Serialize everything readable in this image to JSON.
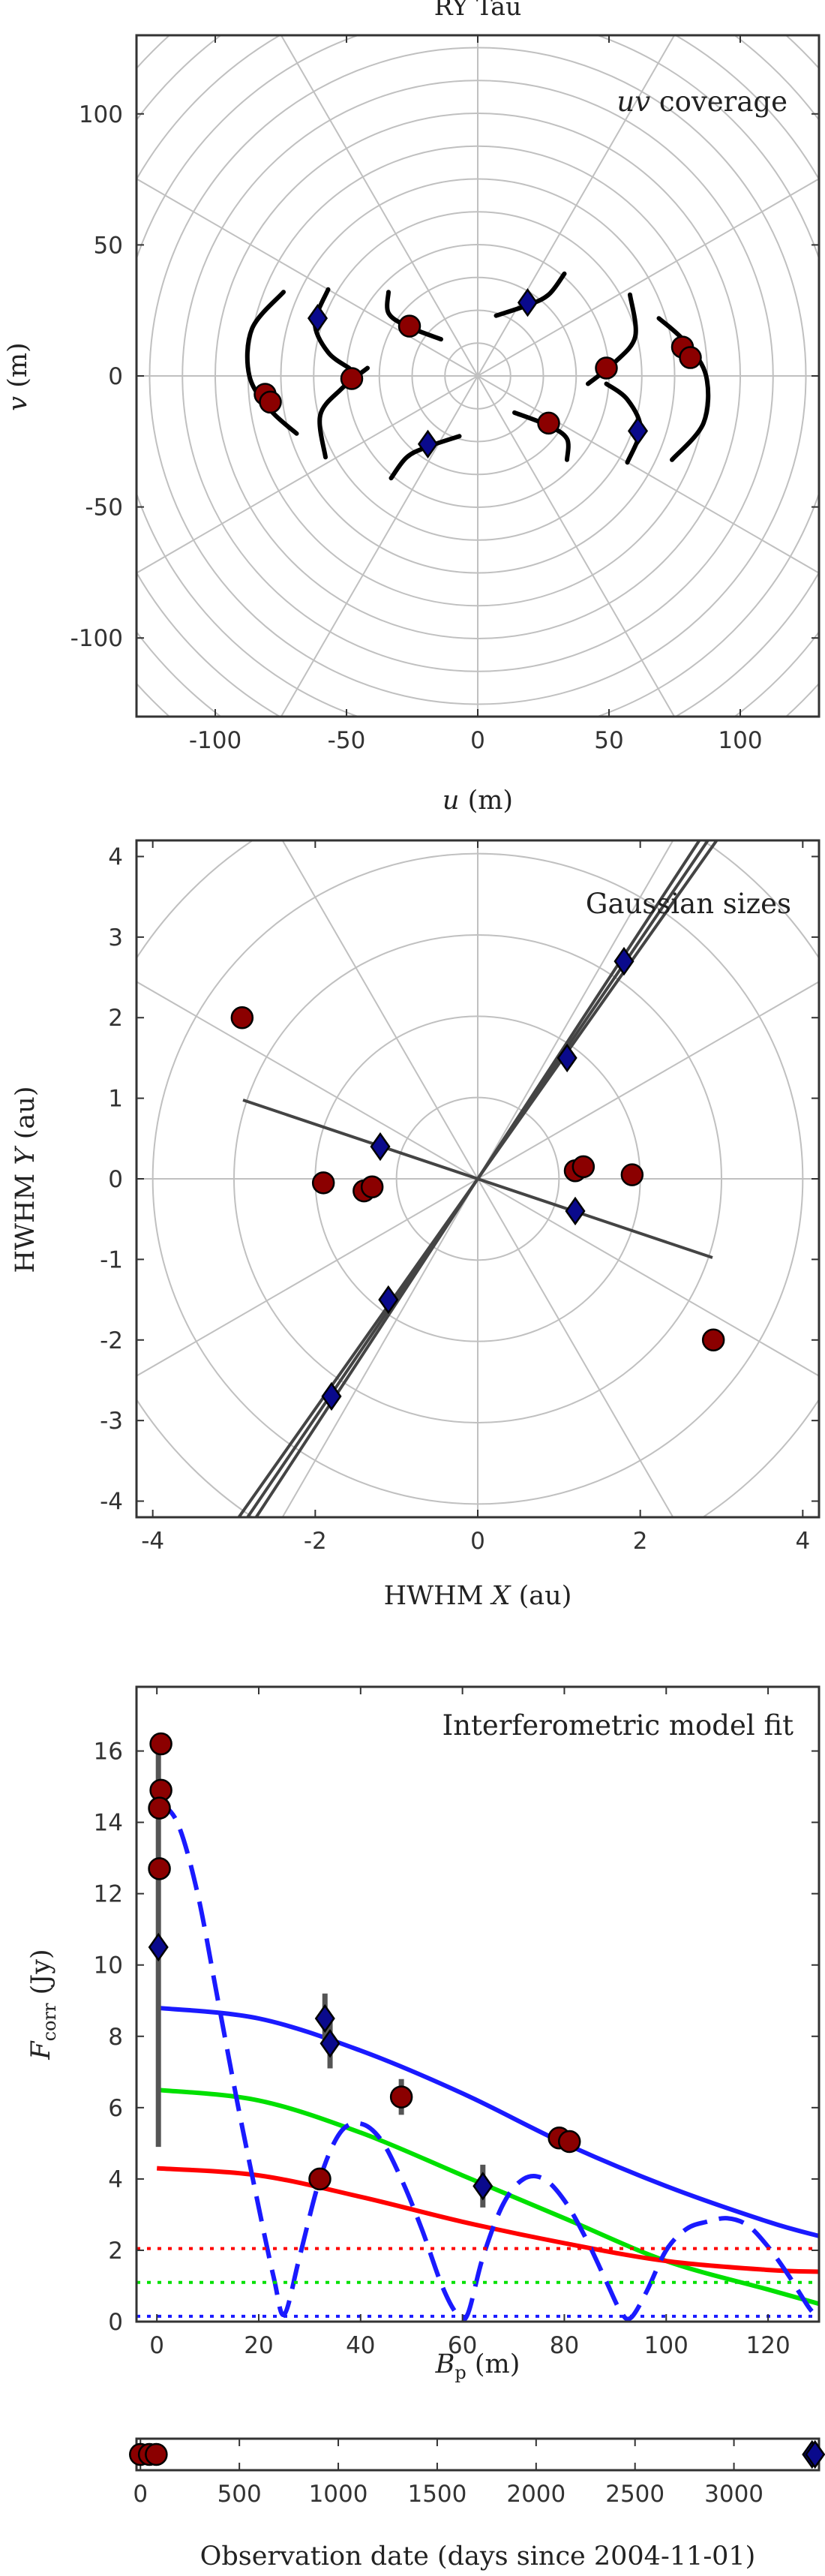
{
  "figure_title": "RY Tau",
  "panels": {
    "uv": {
      "title": "uv coverage",
      "title_italic": "uv",
      "title_rest": " coverage",
      "xlabel_var": "u",
      "xlabel_unit": " (m)",
      "ylabel_var": "v",
      "ylabel_unit": " (m)"
    },
    "sizes": {
      "title": "Gaussian sizes",
      "xlabel_pre": "HWHM ",
      "xlabel_var": "X",
      "xlabel_unit": " (au)",
      "ylabel_pre": "HWHM ",
      "ylabel_var": "Y",
      "ylabel_unit": " (au)"
    },
    "fit": {
      "title": "Interferometric model fit",
      "xlabel_var": "B",
      "xlabel_sub": "p",
      "xlabel_unit": " (m)",
      "ylabel_var": "F",
      "ylabel_sub": "corr",
      "ylabel_unit": " (Jy)"
    },
    "dates": {
      "xlabel": "Observation date (days since 2004-11-01)"
    }
  },
  "colors": {
    "red_marker": "#8b0000",
    "blue_marker": "#0a0a8c",
    "curve_blue": "#1a1aff",
    "curve_green": "#00e000",
    "curve_red": "#ff0000",
    "grid": "#c0c0c0",
    "track": "#000000",
    "errorbar": "#555555"
  },
  "chart_data": [
    {
      "id": "uv",
      "type": "scatter",
      "title": "uv coverage",
      "xlabel": "u (m)",
      "ylabel": "v (m)",
      "xlim": [
        -130,
        130
      ],
      "ylim": [
        -130,
        130
      ],
      "xticks": [
        -100,
        -50,
        0,
        50,
        100
      ],
      "yticks": [
        -100,
        -50,
        0,
        50,
        100
      ],
      "polar_grid": {
        "rings": [
          12.5,
          25,
          37.5,
          50,
          62.5,
          75,
          87.5,
          100,
          112.5,
          125,
          137.5,
          150,
          162.5,
          175
        ],
        "spoke_step_deg": 30
      },
      "series": [
        {
          "marker": "circle",
          "color": "red",
          "points": [
            [
              -81,
              -7
            ],
            [
              -79,
              -10
            ],
            [
              -48,
              -1
            ],
            [
              -26,
              19
            ],
            [
              27,
              -18
            ],
            [
              49,
              3
            ],
            [
              78,
              11
            ],
            [
              81,
              7
            ]
          ]
        },
        {
          "marker": "diamond",
          "color": "blue",
          "points": [
            [
              -61,
              22
            ],
            [
              -19,
              -26
            ],
            [
              19,
              28
            ],
            [
              61,
              -21
            ]
          ]
        }
      ],
      "tracks": [
        [
          [
            -74,
            32
          ],
          [
            -86,
            18
          ],
          [
            -87,
            0
          ],
          [
            -79,
            -13
          ],
          [
            -69,
            -22
          ]
        ],
        [
          [
            -57,
            33
          ],
          [
            -62,
            20
          ],
          [
            -57,
            9
          ],
          [
            -49,
            3
          ]
        ],
        [
          [
            -58,
            -31
          ],
          [
            -60,
            -15
          ],
          [
            -52,
            -5
          ],
          [
            -42,
            3
          ]
        ],
        [
          [
            -34,
            32
          ],
          [
            -34,
            24
          ],
          [
            -27,
            19
          ],
          [
            -14,
            14
          ]
        ],
        [
          [
            -33,
            -39
          ],
          [
            -27,
            -31
          ],
          [
            -19,
            -27
          ],
          [
            -7,
            -23
          ]
        ],
        [
          [
            33,
            39
          ],
          [
            27,
            31
          ],
          [
            19,
            27
          ],
          [
            7,
            23
          ]
        ],
        [
          [
            14,
            -14
          ],
          [
            27,
            -19
          ],
          [
            34,
            -24
          ],
          [
            34,
            -32
          ]
        ],
        [
          [
            42,
            -3
          ],
          [
            52,
            5
          ],
          [
            60,
            15
          ],
          [
            58,
            31
          ]
        ],
        [
          [
            49,
            -3
          ],
          [
            57,
            -9
          ],
          [
            62,
            -20
          ],
          [
            57,
            -33
          ]
        ],
        [
          [
            69,
            22
          ],
          [
            79,
            13
          ],
          [
            87,
            0
          ],
          [
            86,
            -18
          ],
          [
            74,
            -32
          ]
        ]
      ]
    },
    {
      "id": "sizes",
      "type": "scatter",
      "title": "Gaussian sizes",
      "xlabel": "HWHM X (au)",
      "ylabel": "HWHM Y (au)",
      "xlim": [
        -4.2,
        4.2
      ],
      "ylim": [
        -4.2,
        4.2
      ],
      "xticks": [
        -4,
        -2,
        0,
        2,
        4
      ],
      "yticks": [
        -4,
        -3,
        -2,
        -1,
        0,
        1,
        2,
        3,
        4
      ],
      "polar_grid": {
        "rings": [
          1,
          2,
          3,
          4,
          5,
          6
        ],
        "spoke_step_deg": 30
      },
      "series": [
        {
          "marker": "circle",
          "color": "red",
          "points": [
            [
              -2.9,
              2.0
            ],
            [
              -1.9,
              -0.05
            ],
            [
              -1.4,
              -0.15
            ],
            [
              -1.3,
              -0.1
            ],
            [
              1.2,
              0.1
            ],
            [
              1.3,
              0.15
            ],
            [
              1.9,
              0.05
            ],
            [
              2.9,
              -2.0
            ]
          ]
        },
        {
          "marker": "diamond",
          "color": "blue",
          "points": [
            [
              -1.8,
              -2.7
            ],
            [
              -1.1,
              -1.5
            ],
            [
              -1.2,
              0.4
            ],
            [
              1.2,
              -0.4
            ],
            [
              1.1,
              1.5
            ],
            [
              1.8,
              2.7
            ]
          ]
        }
      ],
      "lines": [
        {
          "angle_deg": 57,
          "half_length": 6.0
        },
        {
          "angle_deg": 56,
          "half_length": 6.0
        },
        {
          "angle_deg": 55,
          "half_length": 6.0
        },
        {
          "angle_deg": -18.7,
          "half_length": 3.05
        }
      ]
    },
    {
      "id": "fit",
      "type": "line",
      "title": "Interferometric model fit",
      "xlabel": "Bp (m)",
      "ylabel": "Fcorr (Jy)",
      "xlim": [
        -4,
        130
      ],
      "ylim": [
        0,
        17.8
      ],
      "xticks": [
        0,
        20,
        40,
        60,
        80,
        100,
        120
      ],
      "yticks": [
        0,
        2,
        4,
        6,
        8,
        10,
        12,
        14,
        16
      ],
      "series": [
        {
          "name": "",
          "style": "solid",
          "color": "blue",
          "x": [
            0,
            20,
            40,
            60,
            80,
            100,
            120,
            130
          ],
          "y": [
            8.8,
            8.5,
            7.6,
            6.4,
            5.0,
            3.8,
            2.8,
            2.4
          ]
        },
        {
          "name": "",
          "style": "solid",
          "color": "green",
          "x": [
            0,
            20,
            40,
            60,
            80,
            100,
            120,
            130
          ],
          "y": [
            6.5,
            6.2,
            5.3,
            4.1,
            2.9,
            1.7,
            0.9,
            0.5
          ]
        },
        {
          "name": "",
          "style": "solid",
          "color": "red",
          "x": [
            0,
            20,
            40,
            60,
            80,
            100,
            120,
            130
          ],
          "y": [
            4.3,
            4.1,
            3.5,
            2.8,
            2.2,
            1.7,
            1.45,
            1.4
          ]
        },
        {
          "name": "",
          "style": "dashed",
          "color": "blue",
          "x": [
            0,
            4,
            8,
            12,
            16,
            20,
            23,
            25,
            28,
            32,
            36,
            40,
            44,
            48,
            52,
            56,
            59,
            61,
            64,
            68,
            72,
            76,
            80,
            84,
            88,
            91,
            93,
            96,
            100,
            104,
            108,
            112,
            116,
            120,
            124,
            128,
            130
          ],
          "y": [
            14.6,
            14.0,
            12.0,
            9.0,
            6.0,
            3.2,
            1.2,
            0.2,
            1.8,
            4.0,
            5.3,
            5.55,
            5.1,
            4.0,
            2.6,
            1.0,
            0.2,
            0.2,
            1.8,
            3.3,
            4.0,
            4.0,
            3.4,
            2.4,
            1.2,
            0.3,
            0.1,
            0.8,
            2.0,
            2.6,
            2.8,
            2.9,
            2.7,
            2.1,
            1.3,
            0.4,
            0.1
          ]
        },
        {
          "name": "",
          "style": "dotted",
          "color": "red",
          "x": [
            -4,
            130
          ],
          "y": [
            2.05,
            2.05
          ]
        },
        {
          "name": "",
          "style": "dotted",
          "color": "green",
          "x": [
            -4,
            130
          ],
          "y": [
            1.1,
            1.1
          ]
        },
        {
          "name": "",
          "style": "dotted",
          "color": "blue",
          "x": [
            -4,
            130
          ],
          "y": [
            0.15,
            0.15
          ]
        }
      ],
      "points": [
        {
          "marker": "circle",
          "color": "red",
          "x": 0.8,
          "y": 16.2,
          "err": 0.3
        },
        {
          "marker": "circle",
          "color": "red",
          "x": 0.8,
          "y": 14.9,
          "err": 0.3
        },
        {
          "marker": "circle",
          "color": "red",
          "x": 0.5,
          "y": 14.4,
          "err": 0.3
        },
        {
          "marker": "circle",
          "color": "red",
          "x": 0.5,
          "y": 12.7,
          "err": 0.3
        },
        {
          "marker": "diamond",
          "color": "blue",
          "x": 0.3,
          "y": 10.5,
          "err": 5.6
        },
        {
          "marker": "diamond",
          "color": "blue",
          "x": 33,
          "y": 8.5,
          "err": 0.7
        },
        {
          "marker": "diamond",
          "color": "blue",
          "x": 34,
          "y": 7.8,
          "err": 0.7
        },
        {
          "marker": "circle",
          "color": "red",
          "x": 48,
          "y": 6.3,
          "err": 0.5
        },
        {
          "marker": "circle",
          "color": "red",
          "x": 32,
          "y": 4.0,
          "err": 0.2
        },
        {
          "marker": "diamond",
          "color": "blue",
          "x": 64,
          "y": 3.8,
          "err": 0.6
        },
        {
          "marker": "circle",
          "color": "red",
          "x": 79,
          "y": 5.15,
          "err": 0.2
        },
        {
          "marker": "circle",
          "color": "red",
          "x": 81,
          "y": 5.05,
          "err": 0.2
        }
      ]
    },
    {
      "id": "dates",
      "type": "scatter",
      "xlabel": "Observation date (days since 2004-11-01)",
      "xlim": [
        -20,
        3430
      ],
      "xticks": [
        0,
        500,
        1000,
        1500,
        2000,
        2500,
        3000
      ],
      "series": [
        {
          "marker": "circle",
          "color": "red",
          "x": [
            0,
            45,
            80
          ]
        },
        {
          "marker": "diamond",
          "color": "blue",
          "x": [
            3395,
            3410
          ]
        }
      ]
    }
  ]
}
